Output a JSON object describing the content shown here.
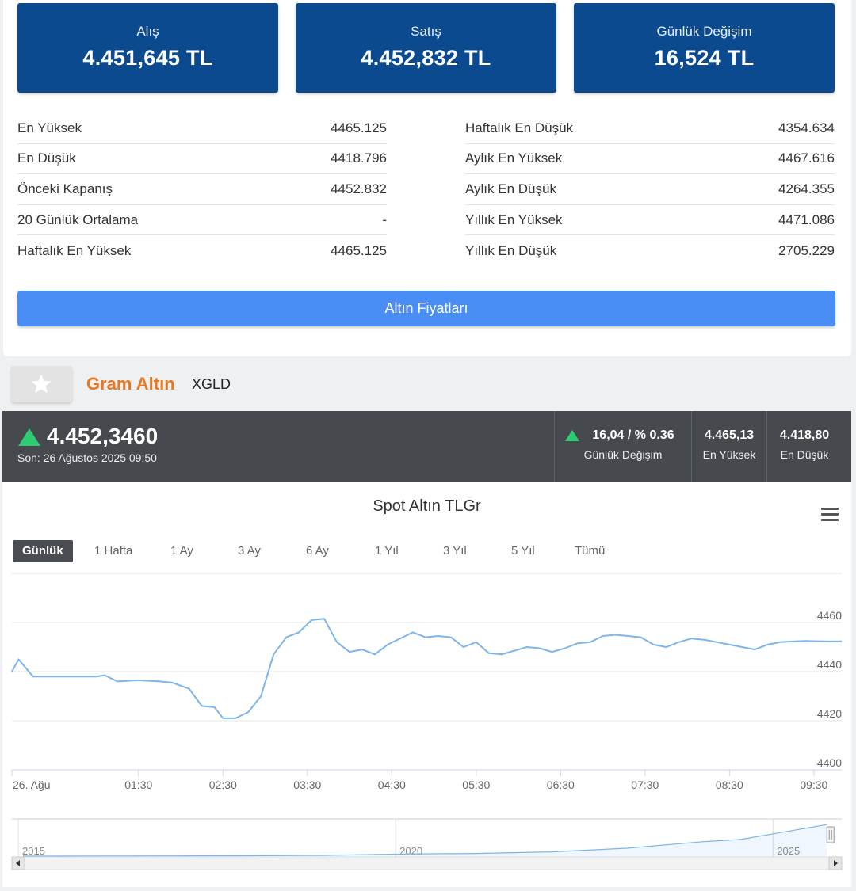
{
  "price_boxes": [
    {
      "label": "Alış",
      "value": "4.451,645 TL"
    },
    {
      "label": "Satış",
      "value": "4.452,832 TL"
    },
    {
      "label": "Günlük Değişim",
      "value": "16,524 TL"
    }
  ],
  "stats_left": [
    {
      "label": "En Yüksek",
      "value": "4465.125"
    },
    {
      "label": "En Düşük",
      "value": "4418.796"
    },
    {
      "label": "Önceki Kapanış",
      "value": "4452.832"
    },
    {
      "label": "20 Günlük Ortalama",
      "value": "-"
    },
    {
      "label": "Haftalık En Yüksek",
      "value": "4465.125"
    }
  ],
  "stats_right": [
    {
      "label": "Haftalık En Düşük",
      "value": "4354.634"
    },
    {
      "label": "Aylık En Yüksek",
      "value": "4467.616"
    },
    {
      "label": "Aylık En Düşük",
      "value": "4264.355"
    },
    {
      "label": "Yıllık En Yüksek",
      "value": "4471.086"
    },
    {
      "label": "Yıllık En Düşük",
      "value": "2705.229"
    }
  ],
  "gold_prices_button": "Altın Fiyatları",
  "instrument": {
    "name": "Gram Altın",
    "code": "XGLD"
  },
  "quote": {
    "price": "4.452,3460",
    "date": "Son: 26 Ağustos 2025 09:50",
    "change_value": "16,04 / % 0.36",
    "change_label": "Günlük Değişim",
    "high_value": "4.465,13",
    "high_label": "En Yüksek",
    "low_value": "4.418,80",
    "low_label": "En Düşük",
    "up_color": "#2ecc71"
  },
  "chart_title": "Spot Altın TLGr",
  "range_tabs": [
    "Günlük",
    "1 Hafta",
    "1 Ay",
    "3 Ay",
    "6 Ay",
    "1 Yıl",
    "3 Yıl",
    "5 Yıl",
    "Tümü"
  ],
  "active_range": "Günlük",
  "chart_data": {
    "type": "line",
    "title": "Spot Altın TLGr",
    "xlabel": "",
    "ylabel": "",
    "x_tick_labels": [
      "26. Ağu",
      "01:30",
      "02:30",
      "03:30",
      "04:30",
      "05:30",
      "06:30",
      "07:30",
      "08:30",
      "09:30"
    ],
    "x_tick_hours": [
      0,
      1.5,
      2.5,
      3.5,
      4.5,
      5.5,
      6.5,
      7.5,
      8.5,
      9.5
    ],
    "y_ticks": [
      4400,
      4420,
      4440,
      4460
    ],
    "ylim": [
      4400,
      4480
    ],
    "xlim": [
      0,
      9.83
    ],
    "grid": true,
    "line_color": "#7cb5ec",
    "series": [
      {
        "x": [
          0,
          0.08,
          0.25,
          0.5,
          0.75,
          1.0,
          1.1,
          1.25,
          1.5,
          1.75,
          1.9,
          2.1,
          2.25,
          2.4,
          2.5,
          2.65,
          2.8,
          2.95,
          3.1,
          3.25,
          3.4,
          3.55,
          3.7,
          3.85,
          4.0,
          4.15,
          4.3,
          4.45,
          4.6,
          4.75,
          4.9,
          5.05,
          5.2,
          5.35,
          5.5,
          5.65,
          5.8,
          5.95,
          6.1,
          6.25,
          6.4,
          6.55,
          6.7,
          6.85,
          7.0,
          7.15,
          7.3,
          7.45,
          7.6,
          7.75,
          7.9,
          8.05,
          8.2,
          8.35,
          8.5,
          8.65,
          8.8,
          8.95,
          9.1,
          9.25,
          9.4,
          9.55,
          9.7,
          9.83
        ],
        "y": [
          4440,
          4445,
          4438,
          4438,
          4438,
          4438,
          4438.5,
          4436,
          4436.5,
          4436,
          4435.5,
          4433,
          4426,
          4425.5,
          4421,
          4421,
          4423.5,
          4430,
          4447,
          4454,
          4456,
          4461,
          4461.5,
          4452,
          4448,
          4449,
          4447,
          4451,
          4453.5,
          4456,
          4454,
          4454.5,
          4454,
          4450,
          4452,
          4447.5,
          4447,
          4448.5,
          4450,
          4449.5,
          4448,
          4449.5,
          4451.5,
          4452,
          4454.5,
          4455,
          4454.5,
          4454,
          4451,
          4450,
          4452,
          4453.5,
          4453,
          4452,
          4451,
          4450,
          4449,
          4451,
          4452,
          4452.3,
          4452.5,
          4452.4,
          4452.3,
          4452.35
        ]
      }
    ],
    "navigator": {
      "labels": [
        "2015",
        "2020",
        "2025"
      ],
      "label_years": [
        2015,
        2020,
        2025
      ],
      "xlim": [
        2015.0,
        2025.7
      ],
      "years": [
        2015.0,
        2016,
        2017,
        2018,
        2019,
        2020,
        2021,
        2022,
        2023,
        2024,
        2024.5,
        2025,
        2025.65
      ],
      "values": [
        110,
        130,
        140,
        160,
        220,
        400,
        480,
        700,
        1200,
        2100,
        2400,
        3300,
        4452
      ]
    }
  }
}
